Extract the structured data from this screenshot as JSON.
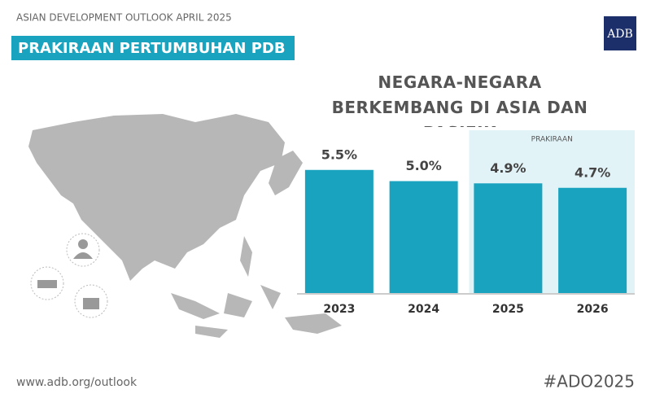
{
  "header": "ASIAN DEVELOPMENT OUTLOOK APRIL 2025",
  "banner": "PRAKIRAAN PERTUMBUHAN PDB",
  "logo": "ADB",
  "footer_url": "www.adb.org/outlook",
  "hashtag": "#ADO2025",
  "chart_data": {
    "type": "bar",
    "title": "NEGARA-NEGARA BERKEMBANG DI ASIA DAN PASIFIK",
    "categories": [
      "2023",
      "2024",
      "2025",
      "2026"
    ],
    "values": [
      5.5,
      5.0,
      4.9,
      4.7
    ],
    "value_labels": [
      "5.5%",
      "5.0%",
      "4.9%",
      "4.7%"
    ],
    "color": "#1aa3bf",
    "forecast": {
      "label": "PRAKIRAAN",
      "start": "2025",
      "end": "2026",
      "color": "#e2f3f7"
    }
  }
}
